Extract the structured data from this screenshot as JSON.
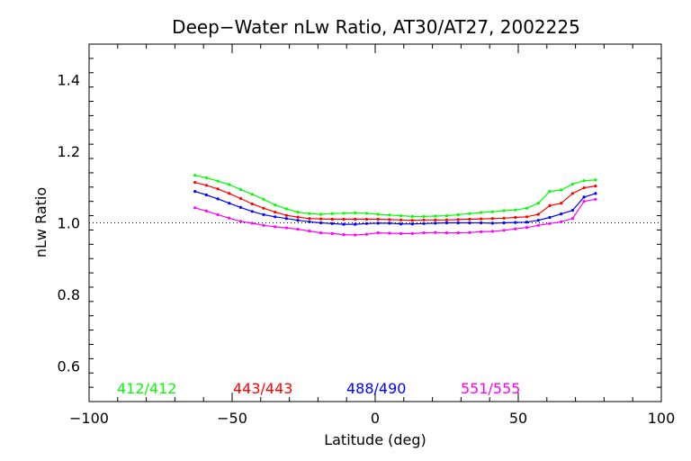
{
  "chart_data": {
    "type": "line",
    "title": "Deep−Water nLw Ratio, AT30/AT27, 2002225",
    "xlabel": "Latitude (deg)",
    "ylabel": "nLw Ratio",
    "xlim": [
      -100,
      100
    ],
    "ylim": [
      0.5,
      1.5
    ],
    "x_ticks": [
      -100,
      -50,
      0,
      50,
      100
    ],
    "x_tick_labels": [
      "−100",
      "−50",
      "0",
      "50",
      "100"
    ],
    "y_ticks": [
      0.6,
      0.8,
      1.0,
      1.2,
      1.4
    ],
    "y_tick_labels": [
      "0.6",
      "0.8",
      "1.0",
      "1.2",
      "1.4"
    ],
    "reference_line": {
      "y": 1.0,
      "style": "dotted"
    },
    "grid": false,
    "legend_placement": "bottom",
    "x": [
      -63,
      -59,
      -55,
      -51,
      -47,
      -43,
      -39,
      -35,
      -31,
      -27,
      -23,
      -19,
      -15,
      -11,
      -7,
      -3,
      1,
      5,
      9,
      13,
      17,
      21,
      25,
      29,
      33,
      37,
      41,
      45,
      49,
      53,
      57,
      61,
      65,
      69,
      73,
      77
    ],
    "series": [
      {
        "name": "412/412",
        "color": "#00ff00",
        "values": [
          1.133,
          1.126,
          1.117,
          1.107,
          1.093,
          1.08,
          1.066,
          1.05,
          1.039,
          1.03,
          1.026,
          1.024,
          1.026,
          1.027,
          1.028,
          1.027,
          1.024,
          1.022,
          1.02,
          1.018,
          1.018,
          1.019,
          1.02,
          1.023,
          1.026,
          1.029,
          1.031,
          1.034,
          1.036,
          1.041,
          1.055,
          1.088,
          1.092,
          1.108,
          1.118,
          1.12
        ]
      },
      {
        "name": "443/443",
        "color": "#ff0000",
        "values": [
          1.113,
          1.105,
          1.095,
          1.082,
          1.068,
          1.053,
          1.041,
          1.03,
          1.021,
          1.016,
          1.012,
          1.011,
          1.01,
          1.01,
          1.01,
          1.01,
          1.01,
          1.009,
          1.008,
          1.007,
          1.008,
          1.008,
          1.008,
          1.009,
          1.01,
          1.011,
          1.012,
          1.013,
          1.015,
          1.017,
          1.024,
          1.048,
          1.055,
          1.082,
          1.098,
          1.103
        ]
      },
      {
        "name": "488/490",
        "color": "#0000ff",
        "values": [
          1.088,
          1.078,
          1.067,
          1.055,
          1.043,
          1.032,
          1.023,
          1.017,
          1.012,
          1.007,
          1.003,
          1.0,
          0.998,
          0.996,
          0.996,
          0.998,
          0.999,
          0.999,
          0.997,
          0.997,
          0.998,
          0.999,
          1.0,
          1.0,
          1.0,
          1.0,
          0.999,
          1.0,
          1.001,
          1.002,
          1.007,
          1.015,
          1.025,
          1.035,
          1.072,
          1.082
        ]
      },
      {
        "name": "551/555",
        "color": "#ff00ff",
        "values": [
          1.042,
          1.033,
          1.023,
          1.013,
          1.004,
          0.999,
          0.993,
          0.989,
          0.986,
          0.982,
          0.977,
          0.972,
          0.97,
          0.967,
          0.966,
          0.968,
          0.972,
          0.971,
          0.97,
          0.97,
          0.972,
          0.973,
          0.972,
          0.972,
          0.973,
          0.975,
          0.976,
          0.979,
          0.983,
          0.987,
          0.993,
          0.998,
          1.003,
          1.012,
          1.06,
          1.066
        ]
      }
    ]
  }
}
